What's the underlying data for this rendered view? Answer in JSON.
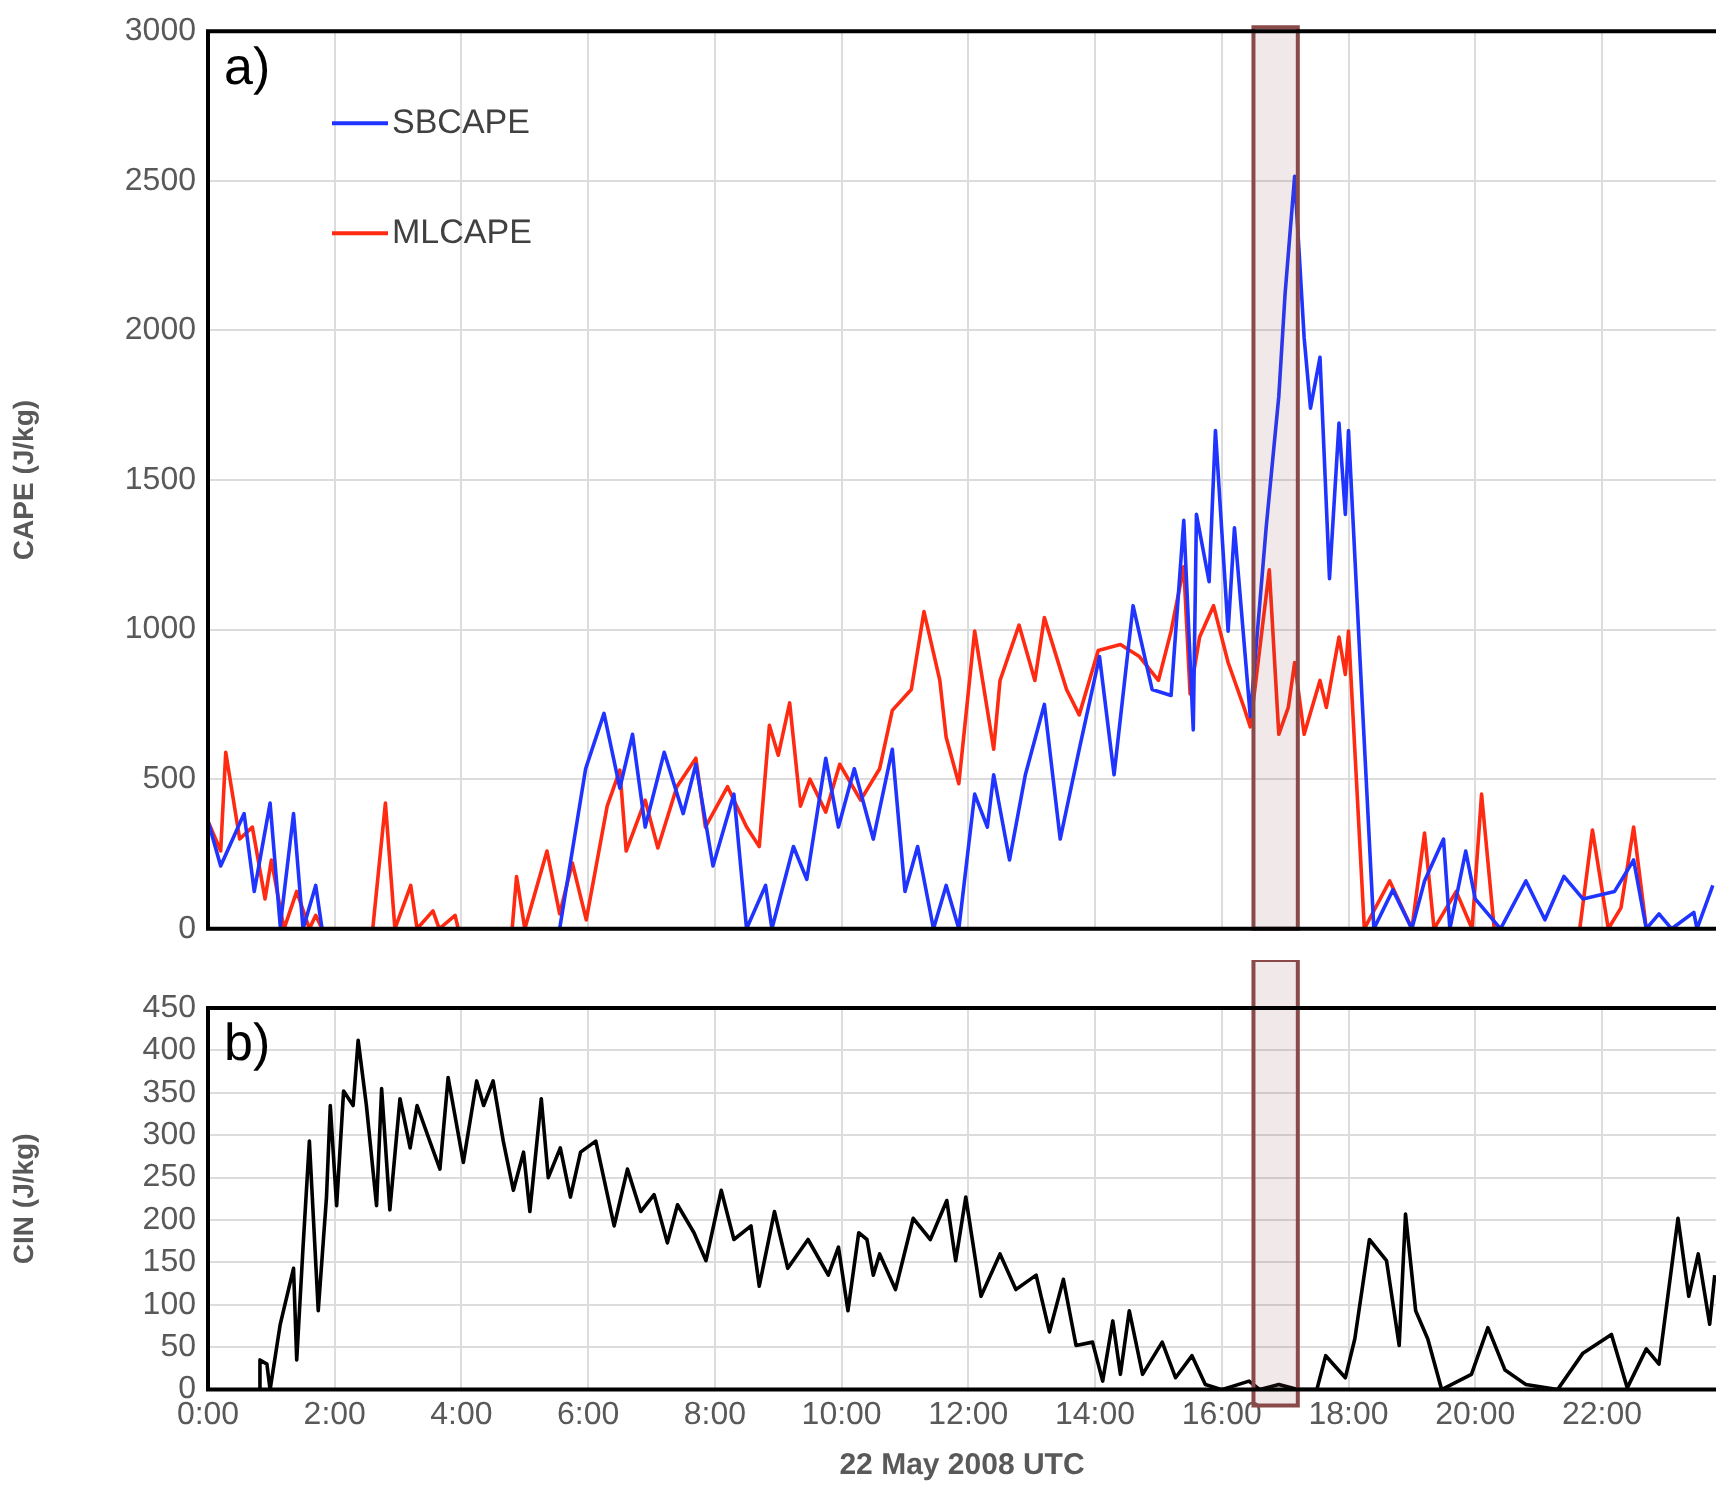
{
  "chart_data": [
    {
      "type": "line",
      "ylabel": "CAPE (J/kg)",
      "annotations": [
        "a)"
      ],
      "xlim": [
        0,
        23.8
      ],
      "xticks": [
        0,
        2,
        4,
        6,
        8,
        10,
        12,
        14,
        16,
        18,
        20,
        22
      ],
      "ylim": [
        0,
        3000
      ],
      "yticks": [
        0,
        500,
        1000,
        1500,
        2000,
        2500,
        3000
      ],
      "tick_labels": "y",
      "grid": true,
      "legend": "top left",
      "marker": "none",
      "line_style": "solid",
      "bands": [
        {
          "axis": "x",
          "from": 16.5,
          "to": 17.2,
          "color": "#8b4a4a"
        }
      ],
      "series": [
        {
          "name": "SBCAPE",
          "color": "#1f35ff",
          "x": [
            0,
            0.2,
            0.57,
            0.73,
            0.98,
            1.14,
            1.35,
            1.5,
            1.7,
            1.8,
            5.55,
            5.96,
            6.25,
            6.5,
            6.7,
            6.9,
            7.2,
            7.5,
            7.7,
            7.97,
            8.3,
            8.5,
            8.8,
            8.9,
            9.24,
            9.45,
            9.75,
            9.95,
            10.2,
            10.5,
            10.8,
            11.0,
            11.2,
            11.45,
            11.65,
            11.85,
            12.1,
            12.3,
            12.4,
            12.65,
            12.9,
            13.2,
            13.45,
            13.75,
            14.07,
            14.3,
            14.6,
            14.9,
            15.2,
            15.4,
            15.55,
            15.6,
            15.8,
            15.9,
            16.1,
            16.2,
            16.45,
            16.7,
            16.9,
            17.0,
            17.15,
            17.3,
            17.4,
            17.55,
            17.7,
            17.85,
            17.95,
            18.0,
            18.17,
            18.4,
            18.7,
            19.0,
            19.2,
            19.5,
            19.6,
            19.85,
            20.0,
            20.4,
            20.8,
            21.1,
            21.4,
            21.7,
            22.2,
            22.5,
            22.7,
            22.9,
            23.1,
            23.45,
            23.5,
            23.75
          ],
          "values": [
            360,
            210,
            385,
            125,
            420,
            10,
            385,
            0,
            145,
            0,
            0,
            535,
            720,
            470,
            650,
            340,
            590,
            385,
            550,
            210,
            450,
            0,
            145,
            0,
            275,
            165,
            570,
            340,
            535,
            300,
            600,
            125,
            275,
            0,
            145,
            0,
            450,
            340,
            515,
            230,
            515,
            750,
            300,
            600,
            910,
            515,
            1080,
            800,
            780,
            1365,
            665,
            1385,
            1160,
            1665,
            995,
            1340,
            710,
            1340,
            1780,
            2125,
            2515,
            1975,
            1740,
            1910,
            1170,
            1690,
            1385,
            1665,
            950,
            0,
            130,
            0,
            160,
            300,
            0,
            260,
            100,
            0,
            160,
            30,
            175,
            100,
            125,
            230,
            0,
            50,
            0,
            55,
            0,
            145
          ]
        },
        {
          "name": "MLCAPE",
          "color": "#ff2a12",
          "x": [
            0,
            0.2,
            0.28,
            0.5,
            0.7,
            0.9,
            1.0,
            1.2,
            1.4,
            1.6,
            1.7,
            1.8,
            2.6,
            2.8,
            2.95,
            3.2,
            3.3,
            3.55,
            3.65,
            3.9,
            3.95,
            4.8,
            4.87,
            5.0,
            5.35,
            5.55,
            5.75,
            5.97,
            6.3,
            6.5,
            6.6,
            6.9,
            7.1,
            7.4,
            7.7,
            7.85,
            8.2,
            8.5,
            8.7,
            8.86,
            9.0,
            9.18,
            9.35,
            9.5,
            9.75,
            9.97,
            10.3,
            10.6,
            10.8,
            11.1,
            11.3,
            11.55,
            11.65,
            11.85,
            12.1,
            12.4,
            12.5,
            12.8,
            13.05,
            13.2,
            13.55,
            13.75,
            14.05,
            14.4,
            14.7,
            15.0,
            15.2,
            15.4,
            15.5,
            15.65,
            15.87,
            16.1,
            16.35,
            16.45,
            16.75,
            16.9,
            17.05,
            17.15,
            17.3,
            17.55,
            17.65,
            17.85,
            17.95,
            18.0,
            18.25,
            18.65,
            19.0,
            19.2,
            19.35,
            19.7,
            19.95,
            20.1,
            20.3,
            21.65,
            21.85,
            22.1,
            22.3,
            22.5,
            22.7,
            23.8
          ],
          "values": [
            360,
            260,
            590,
            300,
            340,
            100,
            230,
            0,
            125,
            0,
            45,
            0,
            0,
            420,
            0,
            145,
            0,
            60,
            0,
            45,
            0,
            0,
            175,
            0,
            260,
            50,
            220,
            30,
            410,
            530,
            260,
            430,
            270,
            475,
            570,
            340,
            475,
            340,
            275,
            680,
            580,
            755,
            410,
            500,
            390,
            550,
            430,
            535,
            730,
            800,
            1060,
            830,
            640,
            485,
            995,
            600,
            830,
            1015,
            830,
            1040,
            800,
            715,
            930,
            950,
            910,
            830,
            995,
            1210,
            785,
            975,
            1080,
            890,
            740,
            675,
            1200,
            650,
            740,
            890,
            650,
            830,
            740,
            975,
            850,
            995,
            0,
            160,
            0,
            320,
            0,
            125,
            0,
            450,
            0,
            0,
            330,
            0,
            70,
            340,
            0,
            0
          ]
        }
      ]
    },
    {
      "type": "line",
      "ylabel": "CIN (J/kg)",
      "xlabel": "22 May 2008 UTC",
      "annotations": [
        "b)"
      ],
      "xlim": [
        0,
        23.8
      ],
      "xticks": [
        {
          "value": 0,
          "label": "0:00"
        },
        {
          "value": 2,
          "label": "2:00"
        },
        {
          "value": 4,
          "label": "4:00"
        },
        {
          "value": 6,
          "label": "6:00"
        },
        {
          "value": 8,
          "label": "8:00"
        },
        {
          "value": 10,
          "label": "10:00"
        },
        {
          "value": 12,
          "label": "12:00"
        },
        {
          "value": 14,
          "label": "14:00"
        },
        {
          "value": 16,
          "label": "16:00"
        },
        {
          "value": 18,
          "label": "18:00"
        },
        {
          "value": 20,
          "label": "20:00"
        },
        {
          "value": 22,
          "label": "22:00"
        }
      ],
      "ylim": [
        0,
        450
      ],
      "yticks": [
        0,
        50,
        100,
        150,
        200,
        250,
        300,
        350,
        400,
        450
      ],
      "grid": true,
      "marker": "none",
      "line_style": "solid",
      "bands": [
        {
          "axis": "x",
          "from": 16.5,
          "to": 17.2,
          "color": "#8b4a4a"
        }
      ],
      "series": [
        {
          "color": "#000000",
          "x": [
            0.79,
            0.82,
            0.93,
            0.98,
            1.14,
            1.35,
            1.4,
            1.5,
            1.6,
            1.74,
            1.87,
            1.93,
            2.03,
            2.14,
            2.29,
            2.37,
            2.5,
            2.66,
            2.74,
            2.87,
            3.03,
            3.19,
            3.3,
            3.5,
            3.66,
            3.79,
            4.03,
            4.24,
            4.35,
            4.5,
            4.66,
            4.82,
            4.98,
            5.08,
            5.26,
            5.37,
            5.56,
            5.72,
            5.88,
            6.12,
            6.41,
            6.62,
            6.83,
            7.04,
            7.25,
            7.41,
            7.67,
            7.86,
            8.1,
            8.3,
            8.57,
            8.7,
            8.94,
            9.15,
            9.47,
            9.79,
            9.95,
            10.1,
            10.27,
            10.4,
            10.5,
            10.6,
            10.85,
            11.13,
            11.4,
            11.66,
            11.8,
            11.96,
            12.2,
            12.5,
            12.75,
            13.07,
            13.28,
            13.5,
            13.7,
            13.96,
            14.12,
            14.28,
            14.4,
            14.54,
            14.75,
            15.06,
            15.27,
            15.53,
            15.74,
            16.0,
            16.43,
            16.6,
            16.9,
            17.2,
            17.5,
            17.64,
            17.95,
            18.1,
            18.33,
            18.6,
            18.8,
            18.9,
            19.06,
            19.25,
            19.47,
            19.94,
            20.2,
            20.47,
            20.8,
            21.3,
            21.7,
            22.15,
            22.4,
            22.7,
            22.9,
            23.2,
            23.37,
            23.52,
            23.7,
            23.78
          ],
          "values": [
            0,
            35,
            30,
            0,
            77,
            143,
            35,
            168,
            293,
            93,
            227,
            335,
            217,
            352,
            335,
            412,
            335,
            217,
            355,
            212,
            343,
            285,
            335,
            293,
            260,
            368,
            268,
            364,
            335,
            364,
            293,
            235,
            280,
            210,
            343,
            250,
            285,
            227,
            280,
            293,
            193,
            260,
            210,
            230,
            173,
            218,
            185,
            152,
            235,
            177,
            193,
            122,
            210,
            143,
            177,
            135,
            168,
            93,
            185,
            177,
            135,
            160,
            118,
            202,
            177,
            223,
            152,
            227,
            110,
            160,
            118,
            135,
            68,
            130,
            52,
            56,
            10,
            81,
            18,
            93,
            18,
            56,
            14,
            40,
            6,
            0,
            10,
            0,
            6,
            0,
            0,
            40,
            14,
            60,
            177,
            152,
            52,
            207,
            93,
            60,
            0,
            18,
            73,
            23,
            6,
            0,
            43,
            65,
            2,
            48,
            30,
            202,
            110,
            160,
            77,
            135
          ]
        }
      ]
    }
  ]
}
